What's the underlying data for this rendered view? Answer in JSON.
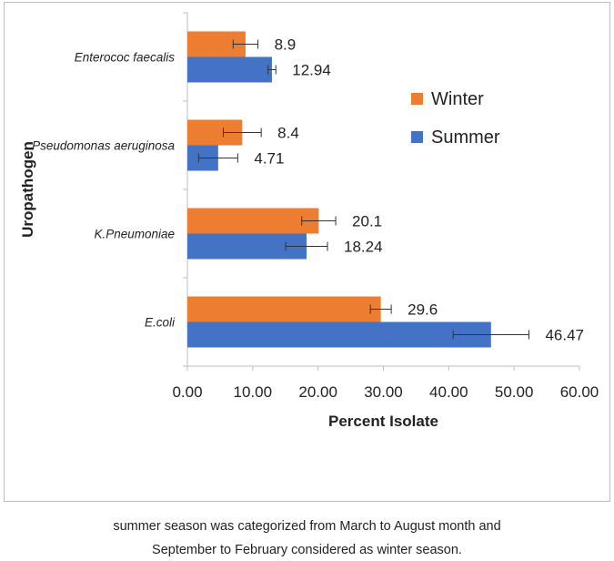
{
  "chart_data": {
    "type": "bar",
    "orientation": "horizontal",
    "categories": [
      "E.coli",
      "K.Pneumoniae",
      "Pseudomonas aeruginosa",
      "Enterococ faecalis"
    ],
    "series": [
      {
        "name": "Winter",
        "color": "#ED7D31",
        "values": [
          29.6,
          20.1,
          8.4,
          8.9
        ],
        "errors": [
          1.6,
          2.6,
          2.9,
          1.9
        ],
        "labels": [
          "29.6",
          "20.1",
          "8.4",
          "8.9"
        ]
      },
      {
        "name": "Summer",
        "color": "#4472C4",
        "values": [
          46.47,
          18.24,
          4.71,
          12.94
        ],
        "errors": [
          5.8,
          3.2,
          3.0,
          0.6
        ],
        "labels": [
          "46.47",
          "18.24",
          "4.71",
          "12.94"
        ]
      }
    ],
    "xlabel": "Percent Isolate",
    "ylabel": "Uropathogen",
    "xlim": [
      0,
      60
    ],
    "xticks": [
      "0.00",
      "10.00",
      "20.00",
      "30.00",
      "40.00",
      "50.00",
      "60.00"
    ],
    "legend_position": "right"
  },
  "caption": {
    "line1": "summer season was categorized from March to August month and",
    "line2": "September to February considered as winter season."
  }
}
